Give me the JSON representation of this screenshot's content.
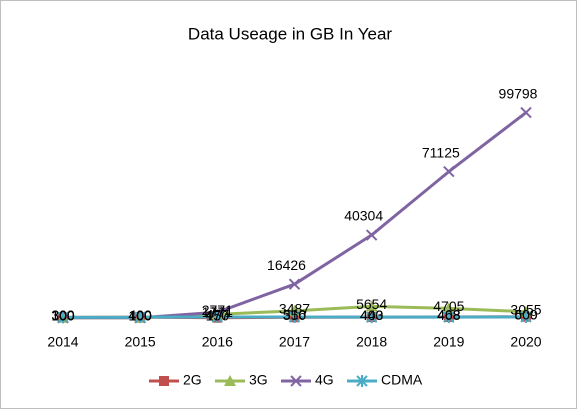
{
  "chart_data": {
    "type": "line",
    "title": "Data Useage in GB In Year",
    "categories": [
      "2014",
      "2015",
      "2016",
      "2017",
      "2018",
      "2019",
      "2020"
    ],
    "series": [
      {
        "name": "2G",
        "color": "#c0504d",
        "marker": "square",
        "values": [
          300,
          400,
          150,
          350,
          443,
          468,
          609
        ]
      },
      {
        "name": "3G",
        "color": "#9bbb59",
        "marker": "triangle",
        "values": [
          100,
          100,
          1771,
          3487,
          5654,
          4705,
          3055
        ]
      },
      {
        "name": "4G",
        "color": "#8064a2",
        "marker": "x",
        "values": [
          100,
          100,
          2771,
          16426,
          40304,
          71125,
          99798
        ]
      },
      {
        "name": "CDMA",
        "color": "#4bacc6",
        "marker": "asterisk",
        "values": [
          300,
          400,
          477,
          516,
          400,
          408,
          500
        ]
      }
    ],
    "ylim": [
      0,
      120000
    ],
    "legend": "bottom"
  }
}
